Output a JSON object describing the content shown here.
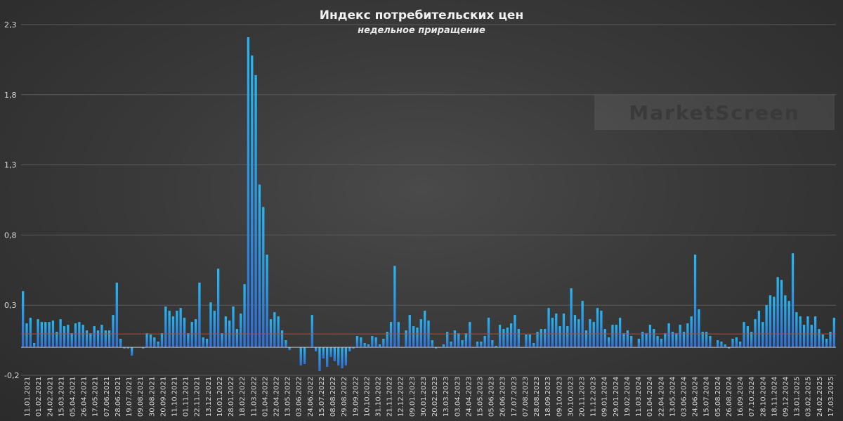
{
  "colors": {
    "bar_top": "#29b6ef",
    "bar_bottom": "#2f6fd6",
    "grid": "#5a5a5a",
    "avg_line": "#d43b3b",
    "zero_line": "#bdbdbd"
  },
  "watermark": {
    "text": "MarketScreen"
  },
  "chart_data": {
    "type": "bar",
    "title": "Индекс потребительских цен",
    "subtitle": "недельное приращение",
    "xlabel": "",
    "ylabel": "",
    "ylim": [
      -0.2,
      2.3
    ],
    "yticks": [
      "2,3",
      "1,8",
      "1,3",
      "0,8",
      "0,3",
      "-0,2"
    ],
    "ytick_values": [
      2.3,
      1.8,
      1.3,
      0.8,
      0.3,
      -0.2
    ],
    "grid": true,
    "legend": "none",
    "reference_line": 0.095,
    "xtick_labels": [
      "11.01.2021",
      "01.02.2021",
      "24.02.2021",
      "15.03.2021",
      "05.04.2021",
      "26.04.2021",
      "17.05.2021",
      "07.06.2021",
      "28.06.2021",
      "19.07.2021",
      "09.08.2021",
      "30.08.2021",
      "20.09.2021",
      "11.10.2021",
      "01.11.2021",
      "22.11.2021",
      "13.12.2021",
      "10.01.2022",
      "28.01.2022",
      "18.02.2022",
      "11.03.2022",
      "01.04.2022",
      "22.04.2022",
      "13.05.2022",
      "03.06.2022",
      "24.06.2022",
      "15.07.2022",
      "08.08.2022",
      "29.08.2022",
      "19.09.2022",
      "10.10.2022",
      "31.10.2022",
      "21.11.2022",
      "12.12.2022",
      "09.01.2023",
      "30.01.2023",
      "20.02.2023",
      "13.03.2023",
      "03.04.2023",
      "24.04.2023",
      "15.05.2023",
      "05.06.2023",
      "26.06.2023",
      "17.07.2023",
      "07.08.2023",
      "28.08.2023",
      "18.09.2023",
      "09.10.2023",
      "30.10.2023",
      "20.11.2023",
      "11.12.2023",
      "09.01.2024",
      "29.01.2024",
      "19.02.2024",
      "11.03.2024",
      "01.04.2024",
      "22.04.2024",
      "13.05.2024",
      "03.06.2024",
      "24.06.2024",
      "15.07.2024",
      "05.08.2024",
      "26.08.2024",
      "16.09.2024",
      "07.10.2024",
      "28.10.2024",
      "18.11.2024",
      "09.12.2024",
      "13.01.2025",
      "03.02.2025",
      "24.02.2025",
      "17.03.2025"
    ],
    "values": [
      0.4,
      0.17,
      0.21,
      0.03,
      0.2,
      0.18,
      0.18,
      0.18,
      0.19,
      0.11,
      0.2,
      0.15,
      0.16,
      0.1,
      0.17,
      0.18,
      0.16,
      0.12,
      0.1,
      0.15,
      0.12,
      0.16,
      0.12,
      0.12,
      0.23,
      0.46,
      0.06,
      -0.01,
      -0.01,
      -0.06,
      0.0,
      0.0,
      -0.01,
      0.1,
      0.09,
      0.07,
      0.04,
      0.1,
      0.29,
      0.26,
      0.22,
      0.26,
      0.28,
      0.21,
      0.1,
      0.18,
      0.2,
      0.46,
      0.07,
      0.06,
      0.32,
      0.26,
      0.56,
      0.1,
      0.22,
      0.19,
      0.29,
      0.13,
      0.24,
      0.45,
      2.21,
      2.08,
      1.94,
      1.16,
      1.0,
      0.66,
      0.2,
      0.25,
      0.22,
      0.12,
      0.05,
      -0.02,
      0.0,
      0.0,
      -0.13,
      -0.12,
      0.0,
      0.23,
      -0.03,
      -0.17,
      -0.08,
      -0.14,
      -0.07,
      -0.1,
      -0.13,
      -0.15,
      -0.13,
      -0.03,
      -0.01,
      0.08,
      0.07,
      0.03,
      0.02,
      0.08,
      0.07,
      0.02,
      0.06,
      0.11,
      0.18,
      0.58,
      0.18,
      0.0,
      0.12,
      0.23,
      0.15,
      0.14,
      0.2,
      0.26,
      0.19,
      0.05,
      -0.01,
      0.0,
      0.02,
      0.11,
      0.04,
      0.12,
      0.1,
      0.05,
      0.1,
      0.18,
      0.0,
      0.04,
      0.04,
      0.08,
      0.21,
      0.05,
      0.01,
      0.16,
      0.13,
      0.14,
      0.17,
      0.23,
      0.13,
      0.0,
      0.09,
      0.09,
      0.03,
      0.11,
      0.13,
      0.13,
      0.28,
      0.21,
      0.24,
      0.15,
      0.24,
      0.15,
      0.42,
      0.23,
      0.2,
      0.33,
      0.12,
      0.2,
      0.18,
      0.28,
      0.26,
      0.13,
      0.07,
      0.16,
      0.16,
      0.21,
      0.1,
      0.12,
      0.08,
      0.0,
      0.06,
      0.11,
      0.1,
      0.16,
      0.13,
      0.08,
      0.06,
      0.1,
      0.17,
      0.11,
      0.1,
      0.16,
      0.11,
      0.17,
      0.22,
      0.66,
      0.27,
      0.11,
      0.11,
      0.08,
      0.0,
      0.05,
      0.04,
      0.02,
      -0.01,
      0.06,
      0.07,
      0.04,
      0.18,
      0.15,
      0.11,
      0.2,
      0.26,
      0.18,
      0.3,
      0.37,
      0.36,
      0.5,
      0.48,
      0.37,
      0.33,
      0.67,
      0.25,
      0.22,
      0.16,
      0.22,
      0.16,
      0.22,
      0.13,
      0.09,
      0.06,
      0.11,
      0.21
    ]
  }
}
